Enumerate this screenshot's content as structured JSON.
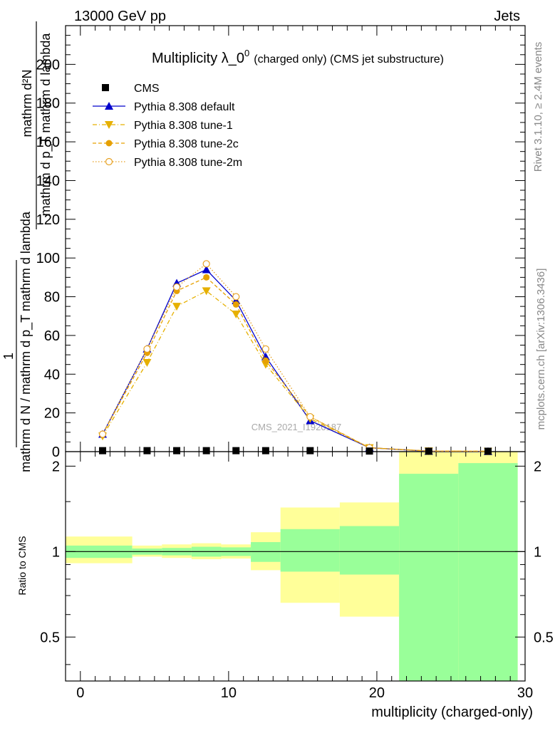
{
  "header": {
    "left": "13000 GeV pp",
    "right": "Jets"
  },
  "side_labels": {
    "rivet": "Rivet 3.1.10, ≥ 2.4M events",
    "mcplots": "mcplots.cern.ch [arXiv:1306.3436]"
  },
  "watermark": "CMS_2021_I1920187",
  "chart_data": {
    "type": "line",
    "title": "Multiplicity λ_0",
    "title_sup": "0",
    "title_note": "(charged only) (CMS jet substructure)",
    "ylabel": {
      "numerator": "1",
      "denominator": "mathrm d N / mathrm d p_T mathrm d lambda",
      "fraction_numerator": "mathrm d²N",
      "fraction_denominator": "mathrm d p_T mathrm d lambda"
    },
    "xlabel": "multiplicity (charged-only)",
    "xlim": [
      -1,
      30
    ],
    "ylim": [
      0,
      220
    ],
    "x_ticks": [
      0,
      10,
      20,
      30
    ],
    "y_ticks": [
      0,
      20,
      40,
      60,
      80,
      100,
      120,
      140,
      160,
      180,
      200
    ],
    "legend": [
      "CMS",
      "Pythia 8.308 default",
      "Pythia 8.308 tune-1",
      "Pythia 8.308 tune-2c",
      "Pythia 8.308 tune-2m"
    ],
    "x": [
      1.5,
      4.5,
      6.5,
      8.5,
      10.5,
      12.5,
      15.5,
      19.5,
      23.5,
      27.5
    ],
    "series": [
      {
        "name": "CMS",
        "marker": "square",
        "color": "#000000",
        "values": [
          0.5,
          0.5,
          0.5,
          0.5,
          0.5,
          0.5,
          0.5,
          0.3,
          0.2,
          0.2
        ]
      },
      {
        "name": "Pythia 8.308 default",
        "marker": "triangle-up",
        "color": "#0000cc",
        "line": "solid",
        "values": [
          9,
          53,
          87,
          94,
          78,
          49,
          16,
          2,
          0.2,
          0.1
        ]
      },
      {
        "name": "Pythia 8.308 tune-1",
        "marker": "triangle-down",
        "color": "#e6b000",
        "line": "dashdot",
        "values": [
          8,
          46,
          75,
          83,
          71,
          45,
          17,
          2,
          0.3,
          0.2
        ]
      },
      {
        "name": "Pythia 8.308 tune-2c",
        "marker": "circle-filled",
        "color": "#e6a000",
        "line": "dashed",
        "values": [
          9,
          51,
          83,
          90,
          76,
          47,
          18,
          2,
          0.3,
          0.2
        ]
      },
      {
        "name": "Pythia 8.308 tune-2m",
        "marker": "circle-open",
        "color": "#e6a020",
        "line": "dotted",
        "values": [
          9,
          53,
          85,
          97,
          80,
          53,
          18,
          2,
          0.3,
          0.2
        ]
      }
    ],
    "ratio": {
      "ylabel": "Ratio to CMS",
      "ylim": [
        0.35,
        2.25
      ],
      "ticks": [
        0.5,
        1,
        2
      ],
      "bins": [
        {
          "lo": -1.0,
          "hi": 3.5,
          "inner": [
            0.95,
            1.05
          ],
          "outer": [
            0.91,
            1.13
          ]
        },
        {
          "lo": 3.5,
          "hi": 5.5,
          "inner": [
            0.975,
            1.025
          ],
          "outer": [
            0.96,
            1.05
          ]
        },
        {
          "lo": 5.5,
          "hi": 7.5,
          "inner": [
            0.97,
            1.03
          ],
          "outer": [
            0.95,
            1.06
          ]
        },
        {
          "lo": 7.5,
          "hi": 9.5,
          "inner": [
            0.96,
            1.04
          ],
          "outer": [
            0.94,
            1.07
          ]
        },
        {
          "lo": 9.5,
          "hi": 11.5,
          "inner": [
            0.965,
            1.035
          ],
          "outer": [
            0.945,
            1.06
          ]
        },
        {
          "lo": 11.5,
          "hi": 13.5,
          "inner": [
            0.92,
            1.08
          ],
          "outer": [
            0.86,
            1.17
          ]
        },
        {
          "lo": 13.5,
          "hi": 17.5,
          "inner": [
            0.85,
            1.2
          ],
          "outer": [
            0.66,
            1.43
          ]
        },
        {
          "lo": 17.5,
          "hi": 21.5,
          "inner": [
            0.83,
            1.23
          ],
          "outer": [
            0.59,
            1.49
          ]
        },
        {
          "lo": 21.5,
          "hi": 25.5,
          "inner": [
            0.35,
            1.88
          ],
          "outer": [
            0.35,
            2.25
          ]
        },
        {
          "lo": 25.5,
          "hi": 29.5,
          "inner": [
            0.35,
            2.05
          ],
          "outer": [
            0.35,
            2.25
          ]
        }
      ]
    }
  }
}
